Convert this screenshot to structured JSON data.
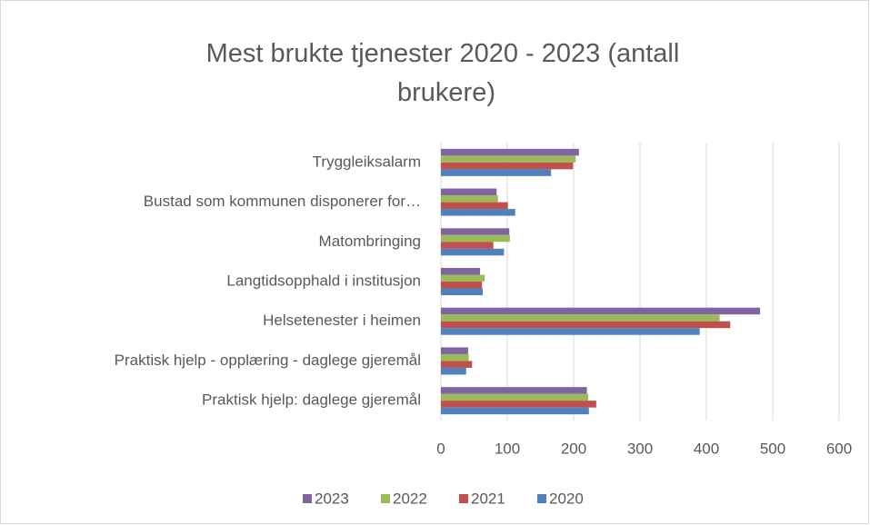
{
  "chart_data": {
    "type": "hbar",
    "title": "Mest brukte tjenester 2020 - 2023 (antall brukere)",
    "categories": [
      "Tryggleiksalarm",
      "Bustad som kommunen disponerer for…",
      "Matombringing",
      "Langtidsopphald i institusjon",
      "Helsetenester i heimen",
      "Praktisk hjelp - opplæring - daglege gjeremål",
      "Praktisk hjelp: daglege gjeremål"
    ],
    "series": [
      {
        "name": "2023",
        "color": "#8064a2",
        "values": [
          208,
          84,
          103,
          59,
          481,
          41,
          220
        ]
      },
      {
        "name": "2022",
        "color": "#9bbb59",
        "values": [
          203,
          86,
          104,
          66,
          420,
          42,
          222
        ]
      },
      {
        "name": "2021",
        "color": "#c0504d",
        "values": [
          199,
          101,
          79,
          62,
          436,
          47,
          234
        ]
      },
      {
        "name": "2020",
        "color": "#4f81bd",
        "values": [
          166,
          112,
          95,
          63,
          390,
          38,
          223
        ]
      }
    ],
    "xlim": [
      0,
      600
    ],
    "xticks": [
      0,
      100,
      200,
      300,
      400,
      500,
      600
    ],
    "grid": true,
    "legend": "bottom"
  }
}
